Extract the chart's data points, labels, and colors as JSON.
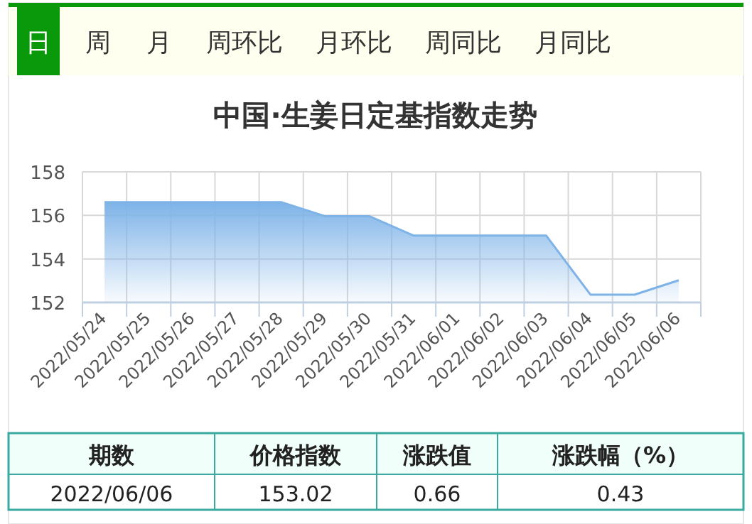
{
  "chart_data": {
    "type": "area",
    "title": "中国·生姜日定基指数走势",
    "categories": [
      "2022/05/24",
      "2022/05/25",
      "2022/05/26",
      "2022/05/27",
      "2022/05/28",
      "2022/05/29",
      "2022/05/30",
      "2022/05/31",
      "2022/06/01",
      "2022/06/02",
      "2022/06/03",
      "2022/06/04",
      "2022/06/05",
      "2022/06/06"
    ],
    "series": [
      {
        "color": "#7eb3e8",
        "values": [
          156.61,
          156.61,
          156.61,
          156.61,
          156.61,
          155.96,
          155.96,
          155.07,
          155.07,
          155.07,
          155.07,
          152.36,
          152.36,
          153.02
        ]
      }
    ],
    "ylim": [
      152,
      158
    ],
    "yticks": [
      152,
      154,
      156,
      158
    ],
    "grid": true,
    "marker": "none",
    "annotations": [
      "日",
      "周",
      "月",
      "周环比",
      "月环比",
      "周同比",
      "月同比",
      "期数",
      "价格指数",
      "涨跌值",
      "涨跌幅（%）",
      "2022/06/06",
      "153.02",
      "0.66",
      "0.43"
    ]
  }
}
